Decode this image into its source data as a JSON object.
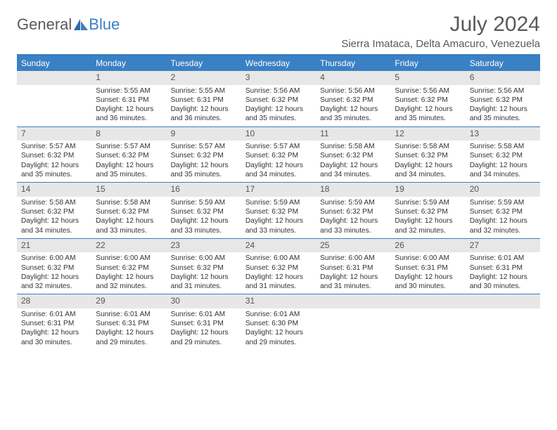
{
  "brand": {
    "part1": "General",
    "part2": "Blue"
  },
  "title": {
    "monthYear": "July 2024",
    "location": "Sierra Imataca, Delta Amacuro, Venezuela"
  },
  "colors": {
    "accent": "#3a80c4",
    "daynum_bg": "#e7e7e7",
    "text": "#333333",
    "muted": "#5a5a5a"
  },
  "dow": [
    "Sunday",
    "Monday",
    "Tuesday",
    "Wednesday",
    "Thursday",
    "Friday",
    "Saturday"
  ],
  "weeks": [
    [
      {
        "n": "",
        "sunrise": "",
        "sunset": "",
        "daylight": ""
      },
      {
        "n": "1",
        "sunrise": "Sunrise: 5:55 AM",
        "sunset": "Sunset: 6:31 PM",
        "daylight": "Daylight: 12 hours and 36 minutes."
      },
      {
        "n": "2",
        "sunrise": "Sunrise: 5:55 AM",
        "sunset": "Sunset: 6:31 PM",
        "daylight": "Daylight: 12 hours and 36 minutes."
      },
      {
        "n": "3",
        "sunrise": "Sunrise: 5:56 AM",
        "sunset": "Sunset: 6:32 PM",
        "daylight": "Daylight: 12 hours and 35 minutes."
      },
      {
        "n": "4",
        "sunrise": "Sunrise: 5:56 AM",
        "sunset": "Sunset: 6:32 PM",
        "daylight": "Daylight: 12 hours and 35 minutes."
      },
      {
        "n": "5",
        "sunrise": "Sunrise: 5:56 AM",
        "sunset": "Sunset: 6:32 PM",
        "daylight": "Daylight: 12 hours and 35 minutes."
      },
      {
        "n": "6",
        "sunrise": "Sunrise: 5:56 AM",
        "sunset": "Sunset: 6:32 PM",
        "daylight": "Daylight: 12 hours and 35 minutes."
      }
    ],
    [
      {
        "n": "7",
        "sunrise": "Sunrise: 5:57 AM",
        "sunset": "Sunset: 6:32 PM",
        "daylight": "Daylight: 12 hours and 35 minutes."
      },
      {
        "n": "8",
        "sunrise": "Sunrise: 5:57 AM",
        "sunset": "Sunset: 6:32 PM",
        "daylight": "Daylight: 12 hours and 35 minutes."
      },
      {
        "n": "9",
        "sunrise": "Sunrise: 5:57 AM",
        "sunset": "Sunset: 6:32 PM",
        "daylight": "Daylight: 12 hours and 35 minutes."
      },
      {
        "n": "10",
        "sunrise": "Sunrise: 5:57 AM",
        "sunset": "Sunset: 6:32 PM",
        "daylight": "Daylight: 12 hours and 34 minutes."
      },
      {
        "n": "11",
        "sunrise": "Sunrise: 5:58 AM",
        "sunset": "Sunset: 6:32 PM",
        "daylight": "Daylight: 12 hours and 34 minutes."
      },
      {
        "n": "12",
        "sunrise": "Sunrise: 5:58 AM",
        "sunset": "Sunset: 6:32 PM",
        "daylight": "Daylight: 12 hours and 34 minutes."
      },
      {
        "n": "13",
        "sunrise": "Sunrise: 5:58 AM",
        "sunset": "Sunset: 6:32 PM",
        "daylight": "Daylight: 12 hours and 34 minutes."
      }
    ],
    [
      {
        "n": "14",
        "sunrise": "Sunrise: 5:58 AM",
        "sunset": "Sunset: 6:32 PM",
        "daylight": "Daylight: 12 hours and 34 minutes."
      },
      {
        "n": "15",
        "sunrise": "Sunrise: 5:58 AM",
        "sunset": "Sunset: 6:32 PM",
        "daylight": "Daylight: 12 hours and 33 minutes."
      },
      {
        "n": "16",
        "sunrise": "Sunrise: 5:59 AM",
        "sunset": "Sunset: 6:32 PM",
        "daylight": "Daylight: 12 hours and 33 minutes."
      },
      {
        "n": "17",
        "sunrise": "Sunrise: 5:59 AM",
        "sunset": "Sunset: 6:32 PM",
        "daylight": "Daylight: 12 hours and 33 minutes."
      },
      {
        "n": "18",
        "sunrise": "Sunrise: 5:59 AM",
        "sunset": "Sunset: 6:32 PM",
        "daylight": "Daylight: 12 hours and 33 minutes."
      },
      {
        "n": "19",
        "sunrise": "Sunrise: 5:59 AM",
        "sunset": "Sunset: 6:32 PM",
        "daylight": "Daylight: 12 hours and 32 minutes."
      },
      {
        "n": "20",
        "sunrise": "Sunrise: 5:59 AM",
        "sunset": "Sunset: 6:32 PM",
        "daylight": "Daylight: 12 hours and 32 minutes."
      }
    ],
    [
      {
        "n": "21",
        "sunrise": "Sunrise: 6:00 AM",
        "sunset": "Sunset: 6:32 PM",
        "daylight": "Daylight: 12 hours and 32 minutes."
      },
      {
        "n": "22",
        "sunrise": "Sunrise: 6:00 AM",
        "sunset": "Sunset: 6:32 PM",
        "daylight": "Daylight: 12 hours and 32 minutes."
      },
      {
        "n": "23",
        "sunrise": "Sunrise: 6:00 AM",
        "sunset": "Sunset: 6:32 PM",
        "daylight": "Daylight: 12 hours and 31 minutes."
      },
      {
        "n": "24",
        "sunrise": "Sunrise: 6:00 AM",
        "sunset": "Sunset: 6:32 PM",
        "daylight": "Daylight: 12 hours and 31 minutes."
      },
      {
        "n": "25",
        "sunrise": "Sunrise: 6:00 AM",
        "sunset": "Sunset: 6:31 PM",
        "daylight": "Daylight: 12 hours and 31 minutes."
      },
      {
        "n": "26",
        "sunrise": "Sunrise: 6:00 AM",
        "sunset": "Sunset: 6:31 PM",
        "daylight": "Daylight: 12 hours and 30 minutes."
      },
      {
        "n": "27",
        "sunrise": "Sunrise: 6:01 AM",
        "sunset": "Sunset: 6:31 PM",
        "daylight": "Daylight: 12 hours and 30 minutes."
      }
    ],
    [
      {
        "n": "28",
        "sunrise": "Sunrise: 6:01 AM",
        "sunset": "Sunset: 6:31 PM",
        "daylight": "Daylight: 12 hours and 30 minutes."
      },
      {
        "n": "29",
        "sunrise": "Sunrise: 6:01 AM",
        "sunset": "Sunset: 6:31 PM",
        "daylight": "Daylight: 12 hours and 29 minutes."
      },
      {
        "n": "30",
        "sunrise": "Sunrise: 6:01 AM",
        "sunset": "Sunset: 6:31 PM",
        "daylight": "Daylight: 12 hours and 29 minutes."
      },
      {
        "n": "31",
        "sunrise": "Sunrise: 6:01 AM",
        "sunset": "Sunset: 6:30 PM",
        "daylight": "Daylight: 12 hours and 29 minutes."
      },
      {
        "n": "",
        "sunrise": "",
        "sunset": "",
        "daylight": ""
      },
      {
        "n": "",
        "sunrise": "",
        "sunset": "",
        "daylight": ""
      },
      {
        "n": "",
        "sunrise": "",
        "sunset": "",
        "daylight": ""
      }
    ]
  ]
}
